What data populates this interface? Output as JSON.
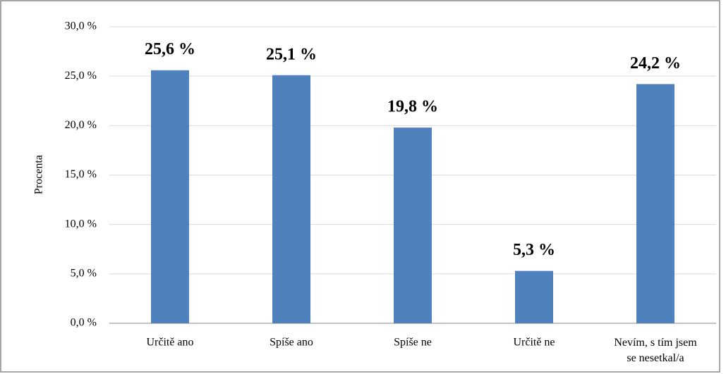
{
  "chart_data": {
    "type": "bar",
    "y_label": "Procenta",
    "categories": [
      "Určitě ano",
      "Spíše ano",
      "Spíše ne",
      "Určitě ne",
      "Nevím, s tím jsem\nse nesetkal/a"
    ],
    "values": [
      25.6,
      25.1,
      19.8,
      5.3,
      24.2
    ],
    "value_labels": [
      "25,6 %",
      "25,1 %",
      "19,8 %",
      "5,3 %",
      "24,2 %"
    ],
    "color": "#4f81bd",
    "ylim": [
      0,
      30
    ],
    "yticks": [
      {
        "value": 0,
        "label": "0,0 %"
      },
      {
        "value": 5,
        "label": "5,0 %"
      },
      {
        "value": 10,
        "label": "10,0 %"
      },
      {
        "value": 15,
        "label": "15,0 %"
      },
      {
        "value": 20,
        "label": "20,0 %"
      },
      {
        "value": 25,
        "label": "25,0 %"
      },
      {
        "value": 30,
        "label": "30,0 %"
      }
    ],
    "grid": true
  }
}
